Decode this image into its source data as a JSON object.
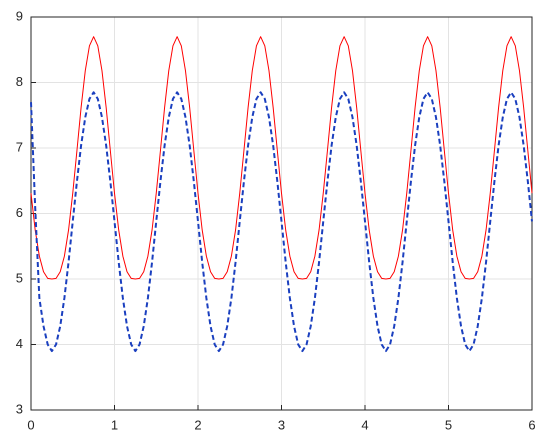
{
  "chart_data": {
    "type": "line",
    "x": [
      0,
      0.05,
      0.1,
      0.15,
      0.2,
      0.25,
      0.3,
      0.35,
      0.4,
      0.45,
      0.5,
      0.55,
      0.6,
      0.65,
      0.7,
      0.75,
      0.8,
      0.85,
      0.9,
      0.95,
      1,
      1.05,
      1.1,
      1.15,
      1.2,
      1.25,
      1.3,
      1.35,
      1.4,
      1.45,
      1.5,
      1.55,
      1.6,
      1.65,
      1.7,
      1.75,
      1.8,
      1.85,
      1.9,
      1.95,
      2,
      2.05,
      2.1,
      2.15,
      2.2,
      2.25,
      2.3,
      2.35,
      2.4,
      2.45,
      2.5,
      2.55,
      2.6,
      2.65,
      2.7,
      2.75,
      2.8,
      2.85,
      2.9,
      2.95,
      3,
      3.05,
      3.1,
      3.15,
      3.2,
      3.25,
      3.3,
      3.35,
      3.4,
      3.45,
      3.5,
      3.55,
      3.6,
      3.65,
      3.7,
      3.75,
      3.8,
      3.85,
      3.9,
      3.95,
      4,
      4.05,
      4.1,
      4.15,
      4.2,
      4.25,
      4.3,
      4.35,
      4.4,
      4.45,
      4.5,
      4.55,
      4.6,
      4.65,
      4.7,
      4.75,
      4.8,
      4.85,
      4.9,
      4.95,
      5,
      5.05,
      5.1,
      5.15,
      5.2,
      5.25,
      5.3,
      5.35,
      5.4,
      5.45,
      5.5,
      5.55,
      5.6,
      5.65,
      5.7,
      5.75,
      5.8,
      5.85,
      5.9,
      5.95,
      6
    ],
    "series": [
      {
        "color": "#ff0000",
        "dash": false,
        "values": [
          6.31,
          5.75,
          5.35,
          5.11,
          5.01,
          5,
          5.01,
          5.11,
          5.35,
          5.75,
          6.31,
          6.96,
          7.62,
          8.18,
          8.56,
          8.7,
          8.56,
          8.18,
          7.62,
          6.96,
          6.31,
          5.75,
          5.35,
          5.11,
          5.01,
          5,
          5.01,
          5.11,
          5.35,
          5.75,
          6.31,
          6.96,
          7.62,
          8.18,
          8.56,
          8.7,
          8.56,
          8.18,
          7.62,
          6.96,
          6.31,
          5.75,
          5.35,
          5.11,
          5.01,
          5,
          5.01,
          5.11,
          5.35,
          5.75,
          6.31,
          6.96,
          7.62,
          8.18,
          8.56,
          8.7,
          8.56,
          8.18,
          7.62,
          6.96,
          6.31,
          5.75,
          5.35,
          5.11,
          5.01,
          5,
          5.01,
          5.11,
          5.35,
          5.75,
          6.31,
          6.96,
          7.62,
          8.18,
          8.56,
          8.7,
          8.56,
          8.18,
          7.62,
          6.96,
          6.31,
          5.75,
          5.35,
          5.11,
          5.01,
          5,
          5.01,
          5.11,
          5.35,
          5.75,
          6.31,
          6.96,
          7.62,
          8.18,
          8.56,
          8.7,
          8.56,
          8.18,
          7.62,
          6.96,
          6.31,
          5.75,
          5.35,
          5.11,
          5.01,
          5,
          5.01,
          5.11,
          5.35,
          5.75,
          6.31,
          6.96,
          7.62,
          8.18,
          8.56,
          8.7,
          8.56,
          8.18,
          7.62,
          6.96,
          6.31
        ]
      },
      {
        "color": "#1a3fbf",
        "dash": true,
        "values": [
          7.7,
          6.1,
          4.71,
          4.28,
          4,
          3.9,
          4,
          4.28,
          4.71,
          5.26,
          5.88,
          6.49,
          7.04,
          7.47,
          7.75,
          7.85,
          7.75,
          7.47,
          7.04,
          6.49,
          5.88,
          5.26,
          4.71,
          4.28,
          4,
          3.9,
          4,
          4.28,
          4.71,
          5.26,
          5.88,
          6.49,
          7.04,
          7.47,
          7.75,
          7.85,
          7.75,
          7.47,
          7.04,
          6.49,
          5.88,
          5.26,
          4.71,
          4.28,
          4,
          3.9,
          4,
          4.28,
          4.71,
          5.26,
          5.88,
          6.49,
          7.04,
          7.47,
          7.75,
          7.85,
          7.75,
          7.47,
          7.04,
          6.49,
          5.88,
          5.26,
          4.71,
          4.28,
          4,
          3.9,
          4,
          4.28,
          4.71,
          5.26,
          5.88,
          6.49,
          7.04,
          7.47,
          7.75,
          7.85,
          7.75,
          7.47,
          7.04,
          6.49,
          5.88,
          5.26,
          4.71,
          4.28,
          4,
          3.9,
          4,
          4.28,
          4.71,
          5.26,
          5.88,
          6.49,
          7.04,
          7.47,
          7.75,
          7.85,
          7.75,
          7.47,
          7.04,
          6.49,
          5.88,
          5.26,
          4.71,
          4.28,
          4,
          3.9,
          4,
          4.28,
          4.71,
          5.26,
          5.88,
          6.49,
          7.04,
          7.47,
          7.75,
          7.85,
          7.75,
          7.47,
          7.04,
          6.49,
          5.88
        ]
      }
    ],
    "xlim": [
      0,
      6
    ],
    "ylim": [
      3,
      9
    ],
    "xticks": [
      0,
      1,
      2,
      3,
      4,
      5,
      6
    ],
    "yticks": [
      3,
      4,
      5,
      6,
      7,
      8,
      9
    ],
    "grid": true
  }
}
